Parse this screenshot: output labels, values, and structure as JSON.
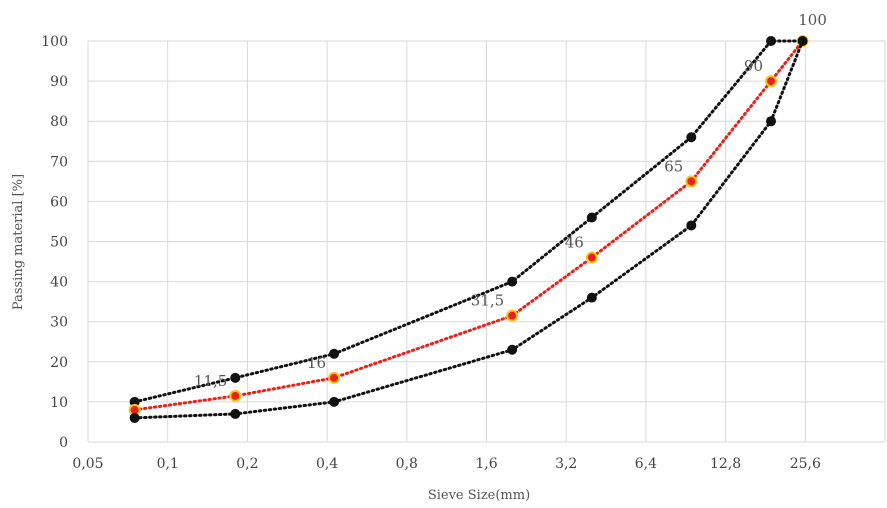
{
  "chart_data": {
    "type": "line",
    "x_scale": "log2",
    "xlim": [
      0.05,
      51.2
    ],
    "ylim": [
      0,
      100
    ],
    "xlabel": "Sieve Size(mm)",
    "ylabel": "Passing material [%]",
    "grid": true,
    "x_ticks": [
      "0,05",
      "0,1",
      "0,2",
      "0,4",
      "0,8",
      "1,6",
      "3,2",
      "6,4",
      "12,8",
      "25,6"
    ],
    "y_ticks": [
      "0",
      "10",
      "20",
      "30",
      "40",
      "50",
      "60",
      "70",
      "80",
      "90",
      "100"
    ],
    "series": [
      {
        "color": "#111111",
        "style": "dotted",
        "x": [
          0.075,
          0.18,
          0.425,
          2.0,
          4.0,
          9.5,
          19.0,
          25.0
        ],
        "y": [
          10,
          16,
          22,
          40,
          56,
          76,
          100,
          100
        ]
      },
      {
        "color": "#e8221b",
        "marker_edge": "#f5c518",
        "style": "dotted",
        "x": [
          0.075,
          0.18,
          0.425,
          2.0,
          4.0,
          9.5,
          19.0,
          25.0
        ],
        "y": [
          8,
          11.5,
          16,
          31.5,
          46,
          65,
          90,
          100
        ],
        "labels": [
          "",
          "11,5",
          "16",
          "31,5",
          "46",
          "65",
          "90",
          "100"
        ]
      },
      {
        "color": "#111111",
        "style": "dotted",
        "x": [
          0.075,
          0.18,
          0.425,
          2.0,
          4.0,
          9.5,
          19.0,
          25.0
        ],
        "y": [
          6,
          7,
          10,
          23,
          36,
          54,
          80,
          100
        ]
      }
    ]
  }
}
